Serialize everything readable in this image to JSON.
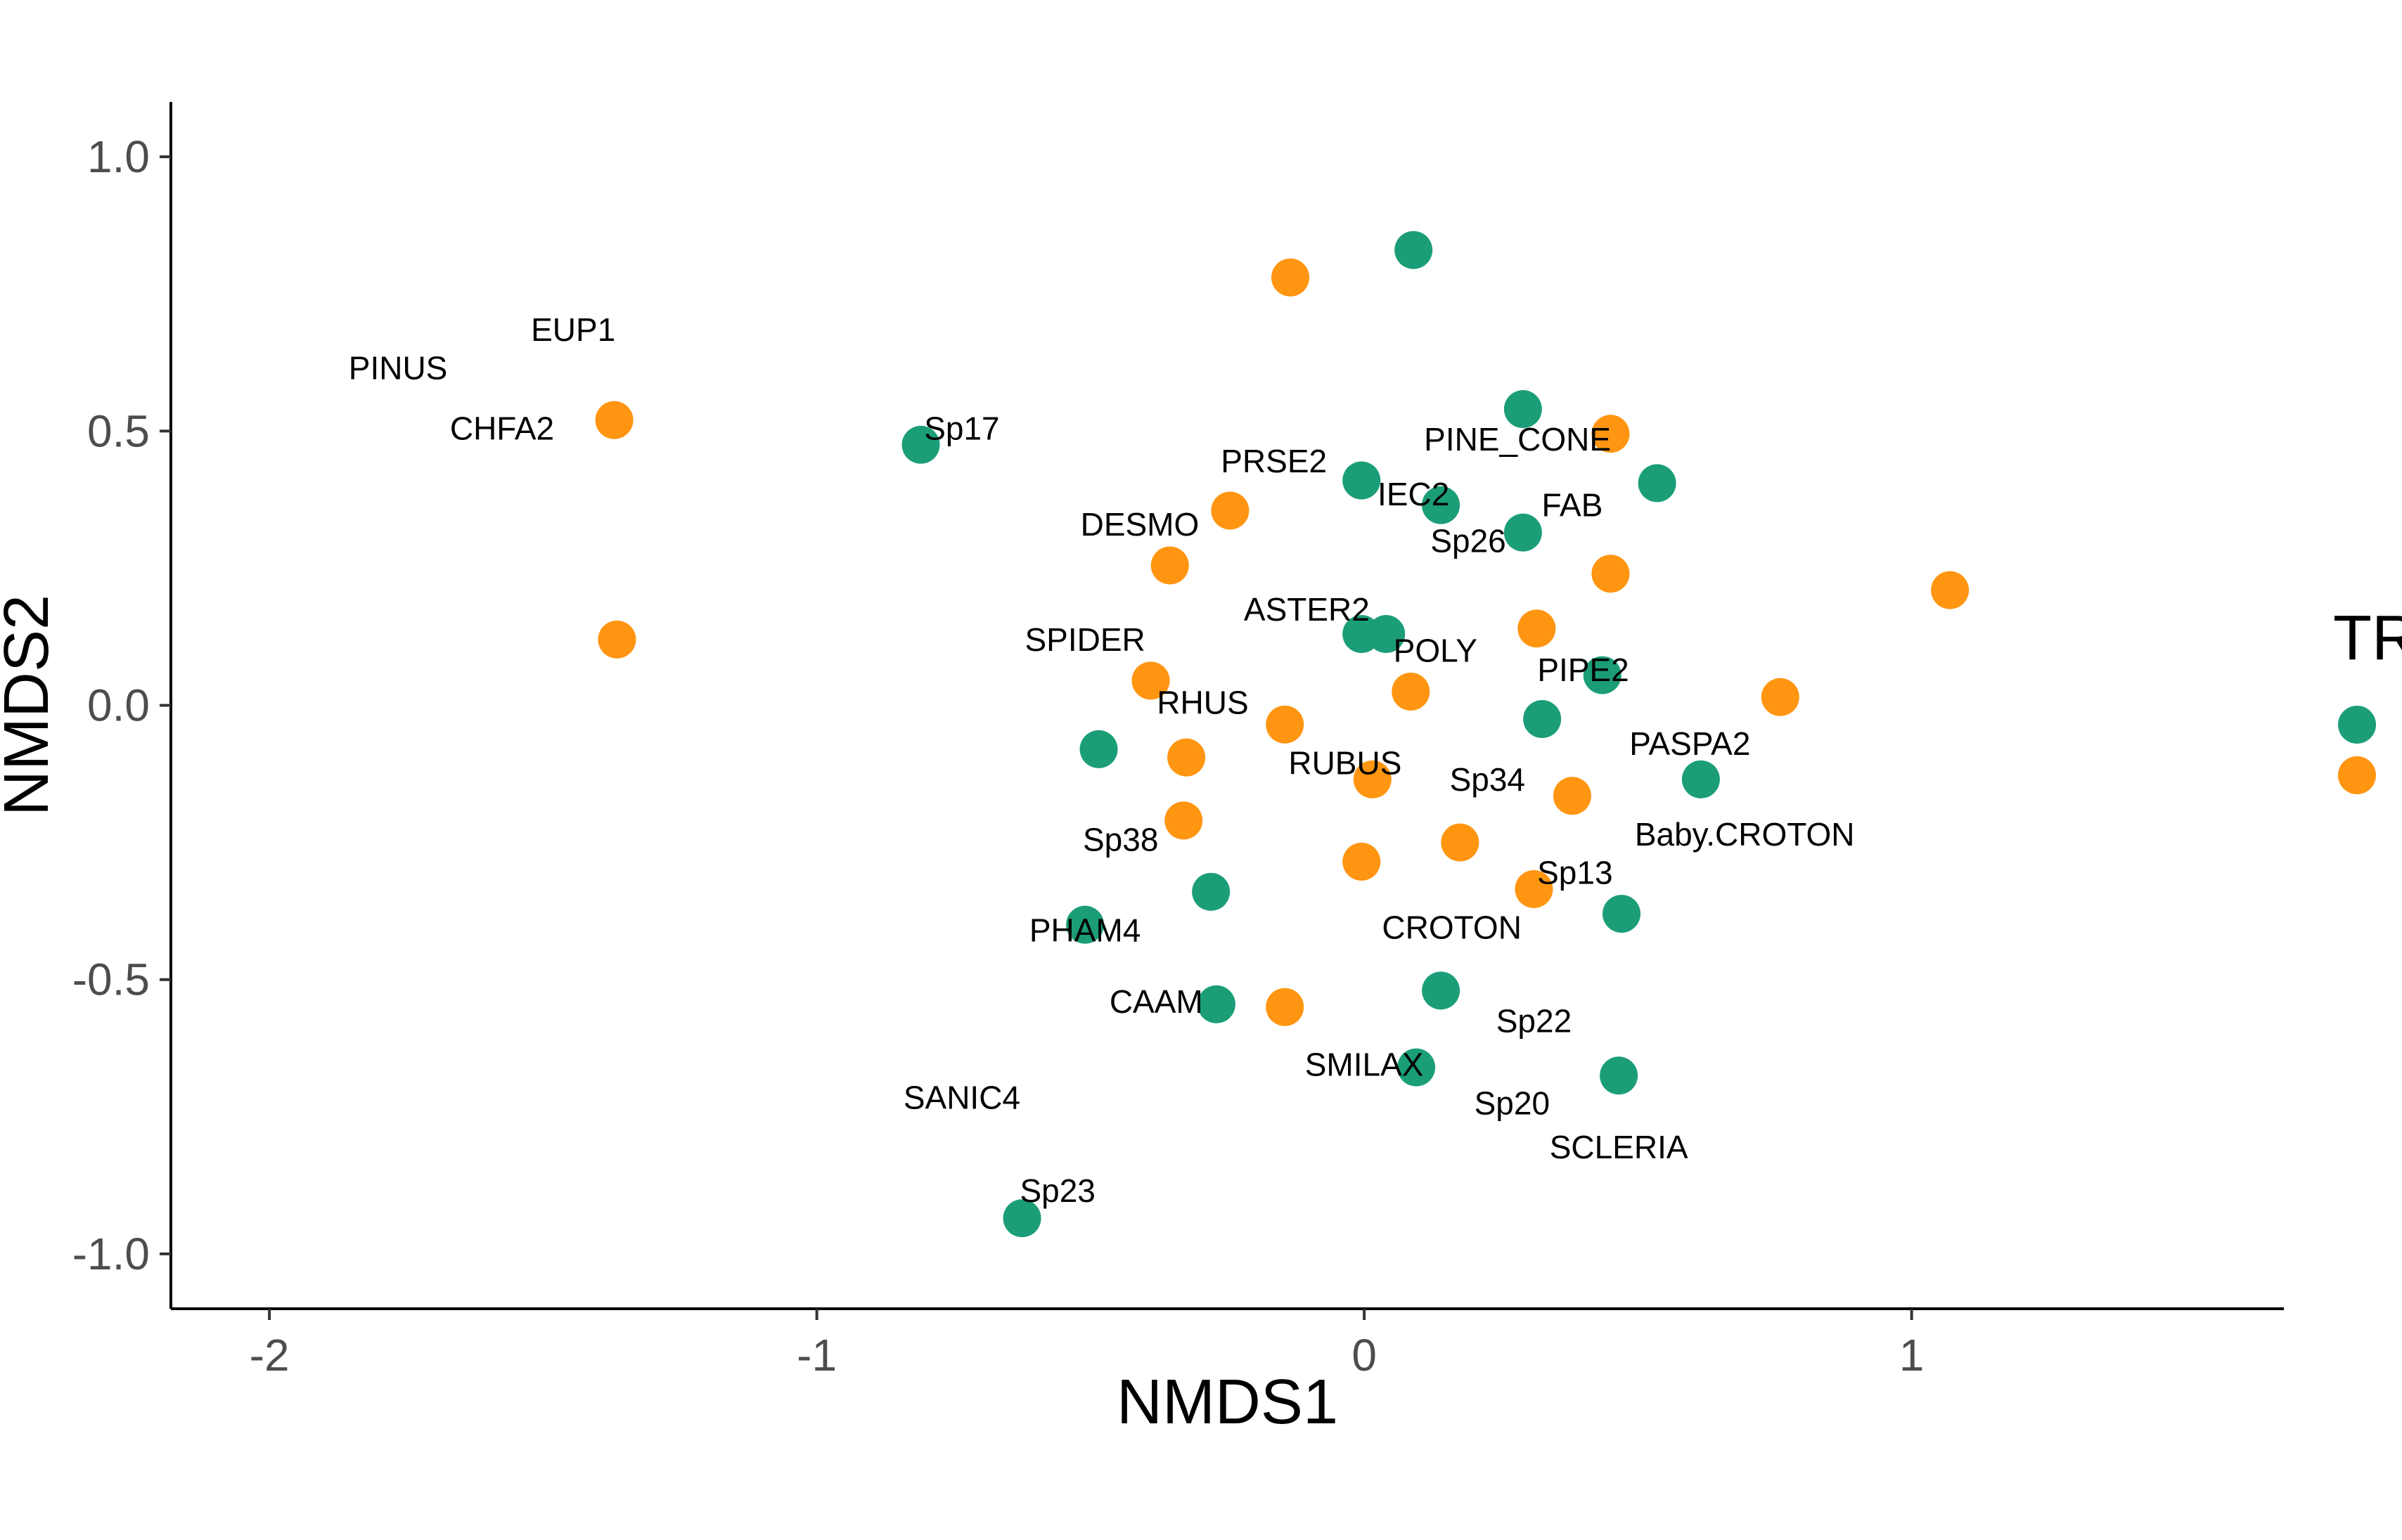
{
  "chart_data": {
    "type": "scatter",
    "xlabel": "NMDS1",
    "ylabel": "NMDS2",
    "xlim": [
      -2.18,
      1.68
    ],
    "ylim": [
      -1.1,
      1.1
    ],
    "x_ticks": [
      -2,
      -1,
      0,
      1
    ],
    "x_tick_labels": [
      "-2",
      "-1",
      "0",
      "1"
    ],
    "y_ticks": [
      -1.0,
      -0.5,
      0.0,
      0.5,
      1.0
    ],
    "y_tick_labels": [
      "-1.0",
      "-0.5",
      "0.0",
      "0.5",
      "1.0"
    ],
    "grid": false,
    "legend": {
      "title": "TR",
      "placement": "right"
    },
    "series": [
      {
        "color": "#1b9e77",
        "points": [
          [
            0.09,
            0.83
          ],
          [
            0.29,
            0.54
          ],
          [
            -0.81,
            0.475
          ],
          [
            -0.005,
            0.41
          ],
          [
            0.14,
            0.365
          ],
          [
            0.535,
            0.405
          ],
          [
            0.29,
            0.315
          ],
          [
            -0.005,
            0.13
          ],
          [
            0.04,
            0.13
          ],
          [
            0.435,
            0.055
          ],
          [
            0.325,
            -0.025
          ],
          [
            -0.485,
            -0.08
          ],
          [
            0.615,
            -0.135
          ],
          [
            -0.28,
            -0.34
          ],
          [
            -0.51,
            -0.4
          ],
          [
            0.47,
            -0.38
          ],
          [
            0.14,
            -0.52
          ],
          [
            -0.27,
            -0.545
          ],
          [
            0.095,
            -0.66
          ],
          [
            0.465,
            -0.675
          ],
          [
            -0.625,
            -0.935
          ]
        ]
      },
      {
        "color": "#ff9510",
        "points": [
          [
            -0.135,
            0.78
          ],
          [
            -1.37,
            0.52
          ],
          [
            0.45,
            0.495
          ],
          [
            -0.245,
            0.355
          ],
          [
            -0.355,
            0.255
          ],
          [
            0.45,
            0.24
          ],
          [
            1.07,
            0.21
          ],
          [
            -1.365,
            0.12
          ],
          [
            0.315,
            0.14
          ],
          [
            -0.39,
            0.045
          ],
          [
            0.085,
            0.025
          ],
          [
            0.76,
            0.015
          ],
          [
            -0.145,
            -0.035
          ],
          [
            -0.325,
            -0.095
          ],
          [
            0.015,
            -0.135
          ],
          [
            0.38,
            -0.165
          ],
          [
            -0.33,
            -0.21
          ],
          [
            0.175,
            -0.25
          ],
          [
            -0.005,
            -0.285
          ],
          [
            0.31,
            -0.335
          ],
          [
            -0.145,
            -0.55
          ]
        ]
      }
    ],
    "labels": [
      {
        "text": "EUP1",
        "x": -1.445,
        "y": 0.685
      },
      {
        "text": "PINUS",
        "x": -1.765,
        "y": 0.615
      },
      {
        "text": "CHFA2",
        "x": -1.575,
        "y": 0.505
      },
      {
        "text": "Sp17",
        "x": -0.735,
        "y": 0.505
      },
      {
        "text": "PRSE2",
        "x": -0.165,
        "y": 0.445
      },
      {
        "text": "PINE_CONE",
        "x": 0.28,
        "y": 0.485
      },
      {
        "text": "IEC2",
        "x": 0.09,
        "y": 0.385
      },
      {
        "text": "FAB",
        "x": 0.38,
        "y": 0.365
      },
      {
        "text": "DESMO",
        "x": -0.41,
        "y": 0.33
      },
      {
        "text": "Sp26",
        "x": 0.19,
        "y": 0.3
      },
      {
        "text": "ASTER2",
        "x": -0.105,
        "y": 0.175
      },
      {
        "text": "SPIDER",
        "x": -0.51,
        "y": 0.12
      },
      {
        "text": "POLY",
        "x": 0.13,
        "y": 0.1
      },
      {
        "text": "PIPE2",
        "x": 0.4,
        "y": 0.065
      },
      {
        "text": "RHUS",
        "x": -0.295,
        "y": 0.005
      },
      {
        "text": "PASPA2",
        "x": 0.595,
        "y": -0.07
      },
      {
        "text": "RUBUS",
        "x": -0.035,
        "y": -0.105
      },
      {
        "text": "Sp34",
        "x": 0.225,
        "y": -0.135
      },
      {
        "text": "Baby.CROTON",
        "x": 0.695,
        "y": -0.235
      },
      {
        "text": "Sp38",
        "x": -0.445,
        "y": -0.245
      },
      {
        "text": "Sp13",
        "x": 0.385,
        "y": -0.305
      },
      {
        "text": "PHAM4",
        "x": -0.51,
        "y": -0.41
      },
      {
        "text": "CROTON",
        "x": 0.16,
        "y": -0.405
      },
      {
        "text": "CAAM",
        "x": -0.38,
        "y": -0.54
      },
      {
        "text": "Sp22",
        "x": 0.31,
        "y": -0.575
      },
      {
        "text": "SMILAX",
        "x": 0.0,
        "y": -0.655
      },
      {
        "text": "SANIC4",
        "x": -0.735,
        "y": -0.715
      },
      {
        "text": "Sp20",
        "x": 0.27,
        "y": -0.725
      },
      {
        "text": "SCLERIA",
        "x": 0.465,
        "y": -0.805
      },
      {
        "text": "Sp23",
        "x": -0.56,
        "y": -0.885
      }
    ]
  }
}
